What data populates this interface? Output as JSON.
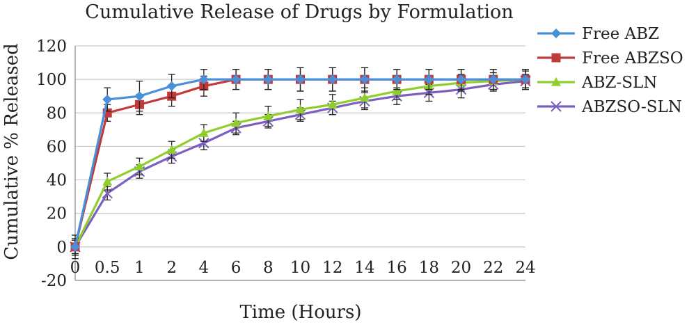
{
  "chart_data": {
    "type": "line",
    "title": "Cumulative Release of Drugs by Formulation",
    "xlabel": "Time (Hours)",
    "ylabel": "Cumulative % Released",
    "categories": [
      "0",
      "0.5",
      "1",
      "2",
      "4",
      "6",
      "8",
      "10",
      "12",
      "14",
      "16",
      "18",
      "20",
      "22",
      "24"
    ],
    "yticks": [
      "-20",
      "0",
      "20",
      "40",
      "60",
      "80",
      "100",
      "120"
    ],
    "ylim": [
      -20,
      120
    ],
    "grid": true,
    "legend_position": "right",
    "series": [
      {
        "name": "Free ABZ",
        "color": "#4a90d9",
        "marker": "diamond",
        "values": [
          0,
          88,
          90,
          96,
          100,
          100,
          100,
          100,
          100,
          100,
          100,
          100,
          100,
          100,
          100
        ],
        "errors": [
          5,
          7,
          9,
          7,
          6,
          6,
          6,
          7,
          7,
          7,
          6,
          6,
          6,
          6,
          6
        ]
      },
      {
        "name": "Free ABZSO",
        "color": "#c0393b",
        "marker": "square",
        "values": [
          0,
          80,
          85,
          90,
          96,
          100,
          100,
          100,
          100,
          100,
          100,
          100,
          100,
          100,
          100
        ],
        "errors": [
          7,
          5,
          6,
          6,
          6,
          6,
          6,
          7,
          7,
          7,
          6,
          6,
          6,
          6,
          6
        ]
      },
      {
        "name": "ABZ-SLN",
        "color": "#8fce2c",
        "marker": "triangle",
        "values": [
          0,
          39,
          48,
          58,
          68,
          74,
          78,
          82,
          85,
          89,
          93,
          96,
          98,
          99,
          100
        ],
        "errors": [
          4,
          5,
          5,
          5,
          5,
          6,
          6,
          6,
          6,
          6,
          5,
          5,
          5,
          5,
          5
        ]
      },
      {
        "name": "ABZSO-SLN",
        "color": "#7b5fbf",
        "marker": "x",
        "values": [
          0,
          32,
          45,
          54,
          62,
          71,
          75,
          79,
          83,
          87,
          90,
          92,
          94,
          97,
          99
        ],
        "errors": [
          4,
          4,
          4,
          4,
          4,
          4,
          4,
          4,
          4,
          5,
          5,
          5,
          5,
          4,
          4
        ]
      }
    ]
  }
}
